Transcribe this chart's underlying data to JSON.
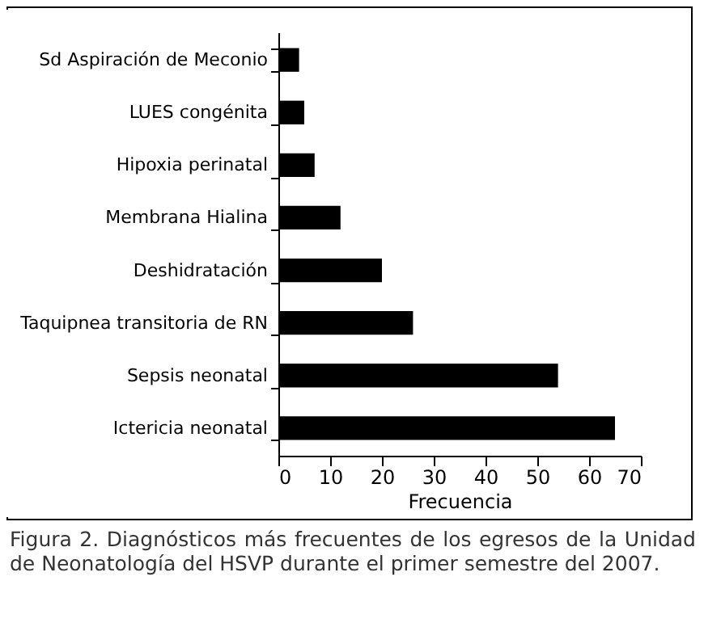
{
  "chart_data": {
    "type": "bar",
    "orientation": "horizontal",
    "categories": [
      "Sd Aspiración de Meconio",
      "LUES congénita",
      "Hipoxia perinatal",
      "Membrana Hialina",
      "Deshidratación",
      "Taquipnea transitoria de RN",
      "Sepsis neonatal",
      "Ictericia neonatal"
    ],
    "values": [
      4,
      5,
      7,
      12,
      20,
      26,
      54,
      65
    ],
    "color": "#000000",
    "xlim": [
      0,
      70
    ],
    "xticks": [
      0,
      10,
      20,
      30,
      40,
      50,
      60,
      70
    ],
    "xlabel": "Frecuencia",
    "grid": false,
    "annotations": [
      "Figura 2. Diagnósticos más frecuentes de los egresos de la Unidad de Neonatología del HSVP durante el primer semestre del 2007."
    ]
  }
}
